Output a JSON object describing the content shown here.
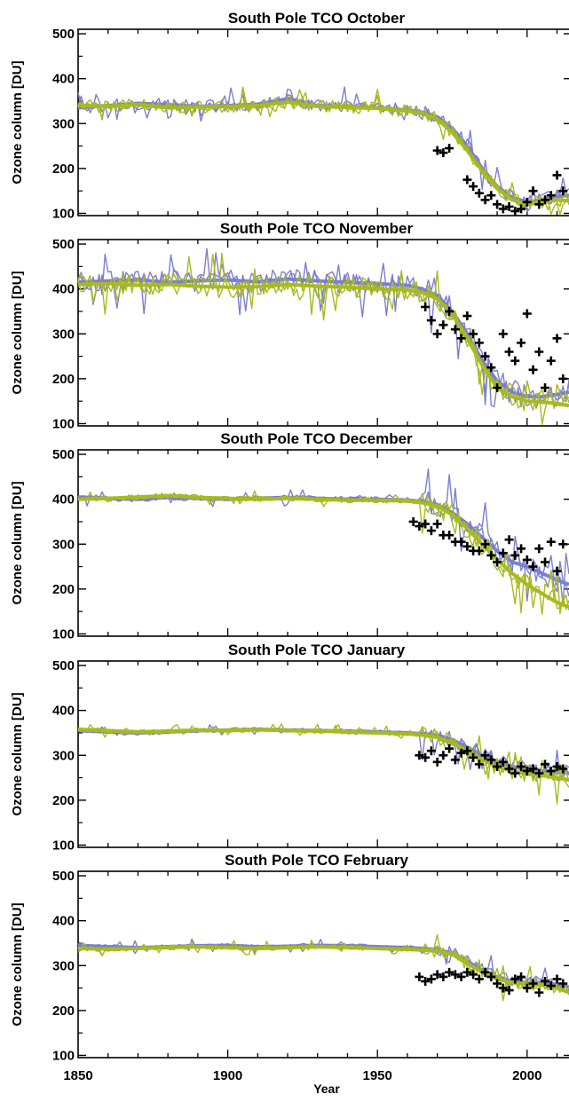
{
  "chart_data": {
    "type": "line",
    "xlabel": "Year",
    "xlim": [
      1850,
      2014
    ],
    "x_ticks": [
      1850,
      1900,
      1950,
      2000
    ],
    "ylim": [
      95,
      510
    ],
    "y_ticks": [
      100,
      200,
      300,
      400,
      500
    ],
    "colors": {
      "model_a": "#7b7fcf",
      "model_b": "#a8ba1e",
      "obs": "#000000"
    },
    "panels": [
      {
        "title": "South Pole TCO October",
        "ylabel": "Ozone column [DU]",
        "series": [
          {
            "x": [
              1850,
              1860,
              1870,
              1880,
              1890,
              1900,
              1910,
              1920,
              1930,
              1940,
              1950,
              1960,
              1965,
              1970,
              1975,
              1980,
              1985,
              1990,
              1995,
              2000,
              2005,
              2010,
              2014
            ],
            "y": [
              335,
              340,
              345,
              342,
              338,
              340,
              343,
              355,
              340,
              338,
              335,
              330,
              325,
              315,
              290,
              250,
              200,
              160,
              135,
              125,
              130,
              138,
              140
            ]
          },
          {
            "x": [
              1850,
              1860,
              1870,
              1880,
              1890,
              1900,
              1910,
              1920,
              1930,
              1940,
              1950,
              1960,
              1965,
              1970,
              1975,
              1980,
              1985,
              1990,
              1995,
              2000,
              2005,
              2010,
              2014
            ],
            "y": [
              340,
              338,
              342,
              335,
              337,
              338,
              340,
              348,
              338,
              336,
              334,
              328,
              322,
              310,
              280,
              240,
              195,
              155,
              130,
              120,
              125,
              130,
              128
            ]
          }
        ],
        "obs": {
          "x": [
            1970,
            1972,
            1974,
            1980,
            1982,
            1984,
            1986,
            1988,
            1990,
            1992,
            1994,
            1996,
            1998,
            2000,
            2002,
            2004,
            2006,
            2008,
            2010,
            2012
          ],
          "y": [
            240,
            235,
            245,
            175,
            160,
            145,
            130,
            140,
            120,
            110,
            115,
            105,
            110,
            125,
            150,
            120,
            130,
            140,
            185,
            150
          ]
        }
      },
      {
        "title": "South Pole TCO November",
        "ylabel": "Ozone column [DU]",
        "series": [
          {
            "x": [
              1850,
              1860,
              1870,
              1880,
              1890,
              1900,
              1910,
              1920,
              1930,
              1940,
              1950,
              1960,
              1965,
              1970,
              1975,
              1980,
              1985,
              1990,
              1995,
              2000,
              2005,
              2010,
              2014
            ],
            "y": [
              415,
              418,
              420,
              415,
              418,
              420,
              416,
              422,
              418,
              415,
              412,
              408,
              400,
              385,
              350,
              300,
              240,
              195,
              170,
              160,
              160,
              165,
              170
            ]
          },
          {
            "x": [
              1850,
              1860,
              1870,
              1880,
              1890,
              1900,
              1910,
              1920,
              1930,
              1940,
              1950,
              1960,
              1965,
              1970,
              1975,
              1980,
              1985,
              1990,
              1995,
              2000,
              2005,
              2010,
              2014
            ],
            "y": [
              410,
              412,
              408,
              410,
              406,
              404,
              405,
              410,
              406,
              404,
              400,
              398,
              392,
              378,
              345,
              290,
              230,
              180,
              160,
              150,
              148,
              145,
              140
            ]
          }
        ],
        "obs": {
          "x": [
            1966,
            1968,
            1970,
            1972,
            1974,
            1976,
            1978,
            1980,
            1982,
            1984,
            1986,
            1988,
            1990,
            1992,
            1994,
            1996,
            1998,
            2000,
            2002,
            2004,
            2006,
            2008,
            2010,
            2012
          ],
          "y": [
            360,
            330,
            300,
            320,
            350,
            310,
            290,
            340,
            300,
            280,
            250,
            225,
            180,
            300,
            260,
            240,
            280,
            345,
            220,
            260,
            180,
            240,
            290,
            200
          ]
        }
      },
      {
        "title": "South Pole TCO December",
        "ylabel": "Ozone column [DU]",
        "series": [
          {
            "x": [
              1850,
              1860,
              1870,
              1880,
              1890,
              1900,
              1910,
              1920,
              1930,
              1940,
              1950,
              1960,
              1965,
              1970,
              1975,
              1980,
              1985,
              1990,
              1995,
              2000,
              2005,
              2010,
              2014
            ],
            "y": [
              405,
              402,
              400,
              404,
              402,
              400,
              402,
              404,
              402,
              400,
              400,
              398,
              395,
              388,
              370,
              345,
              315,
              285,
              260,
              250,
              235,
              220,
              210
            ]
          },
          {
            "x": [
              1850,
              1860,
              1870,
              1880,
              1890,
              1900,
              1910,
              1920,
              1930,
              1940,
              1950,
              1960,
              1965,
              1970,
              1975,
              1980,
              1985,
              1990,
              1995,
              2000,
              2005,
              2010,
              2014
            ],
            "y": [
              400,
              402,
              405,
              408,
              404,
              402,
              400,
              402,
              400,
              398,
              398,
              396,
              392,
              385,
              365,
              335,
              300,
              265,
              235,
              210,
              190,
              170,
              160
            ]
          }
        ],
        "obs": {
          "x": [
            1962,
            1964,
            1966,
            1968,
            1970,
            1972,
            1974,
            1976,
            1978,
            1980,
            1982,
            1984,
            1986,
            1988,
            1990,
            1992,
            1994,
            1996,
            1998,
            2000,
            2002,
            2004,
            2006,
            2008,
            2010,
            2012
          ],
          "y": [
            350,
            340,
            345,
            330,
            345,
            320,
            320,
            305,
            305,
            295,
            285,
            285,
            300,
            275,
            260,
            280,
            310,
            275,
            290,
            265,
            250,
            290,
            260,
            305,
            240,
            300
          ]
        }
      },
      {
        "title": "South Pole TCO January",
        "ylabel": "Ozone column [DU]",
        "series": [
          {
            "x": [
              1850,
              1860,
              1870,
              1880,
              1890,
              1900,
              1910,
              1920,
              1930,
              1940,
              1950,
              1960,
              1965,
              1970,
              1975,
              1980,
              1985,
              1990,
              1995,
              2000,
              2005,
              2010,
              2014
            ],
            "y": [
              355,
              352,
              350,
              352,
              355,
              356,
              358,
              356,
              355,
              354,
              352,
              350,
              348,
              345,
              335,
              318,
              300,
              285,
              275,
              268,
              265,
              262,
              260
            ]
          },
          {
            "x": [
              1850,
              1860,
              1870,
              1880,
              1890,
              1900,
              1910,
              1920,
              1930,
              1940,
              1950,
              1960,
              1965,
              1970,
              1975,
              1980,
              1985,
              1990,
              1995,
              2000,
              2005,
              2010,
              2014
            ],
            "y": [
              358,
              355,
              352,
              354,
              356,
              355,
              357,
              355,
              354,
              352,
              350,
              348,
              345,
              340,
              328,
              310,
              290,
              275,
              265,
              258,
              255,
              250,
              245
            ]
          }
        ],
        "obs": {
          "x": [
            1964,
            1966,
            1968,
            1970,
            1972,
            1974,
            1976,
            1978,
            1980,
            1982,
            1984,
            1986,
            1988,
            1990,
            1992,
            1994,
            1996,
            1998,
            2000,
            2002,
            2004,
            2006,
            2008,
            2010,
            2012
          ],
          "y": [
            300,
            295,
            310,
            285,
            300,
            315,
            290,
            305,
            310,
            295,
            280,
            300,
            290,
            275,
            285,
            270,
            260,
            275,
            265,
            270,
            260,
            280,
            265,
            275,
            270
          ]
        }
      },
      {
        "title": "South Pole TCO February",
        "ylabel": "Ozone column [DU]",
        "series": [
          {
            "x": [
              1850,
              1860,
              1870,
              1880,
              1890,
              1900,
              1910,
              1920,
              1930,
              1940,
              1950,
              1960,
              1965,
              1970,
              1975,
              1980,
              1985,
              1990,
              1995,
              2000,
              2005,
              2010,
              2014
            ],
            "y": [
              345,
              342,
              340,
              342,
              344,
              345,
              342,
              343,
              345,
              344,
              342,
              340,
              338,
              335,
              328,
              310,
              290,
              275,
              265,
              262,
              262,
              258,
              252
            ]
          },
          {
            "x": [
              1850,
              1860,
              1870,
              1880,
              1890,
              1900,
              1910,
              1920,
              1930,
              1940,
              1950,
              1960,
              1965,
              1970,
              1975,
              1980,
              1985,
              1990,
              1995,
              2000,
              2005,
              2010,
              2014
            ],
            "y": [
              338,
              337,
              338,
              340,
              342,
              340,
              338,
              340,
              342,
              340,
              338,
              336,
              335,
              332,
              325,
              305,
              285,
              270,
              262,
              258,
              256,
              250,
              240
            ]
          }
        ],
        "obs": {
          "x": [
            1964,
            1966,
            1968,
            1970,
            1972,
            1974,
            1976,
            1978,
            1980,
            1982,
            1984,
            1986,
            1988,
            1990,
            1992,
            1994,
            1996,
            1998,
            2000,
            2002,
            2004,
            2006,
            2008,
            2010,
            2012
          ],
          "y": [
            275,
            265,
            270,
            280,
            275,
            285,
            280,
            275,
            285,
            280,
            270,
            285,
            275,
            260,
            250,
            245,
            270,
            275,
            250,
            260,
            240,
            265,
            255,
            270,
            260
          ]
        }
      }
    ]
  }
}
